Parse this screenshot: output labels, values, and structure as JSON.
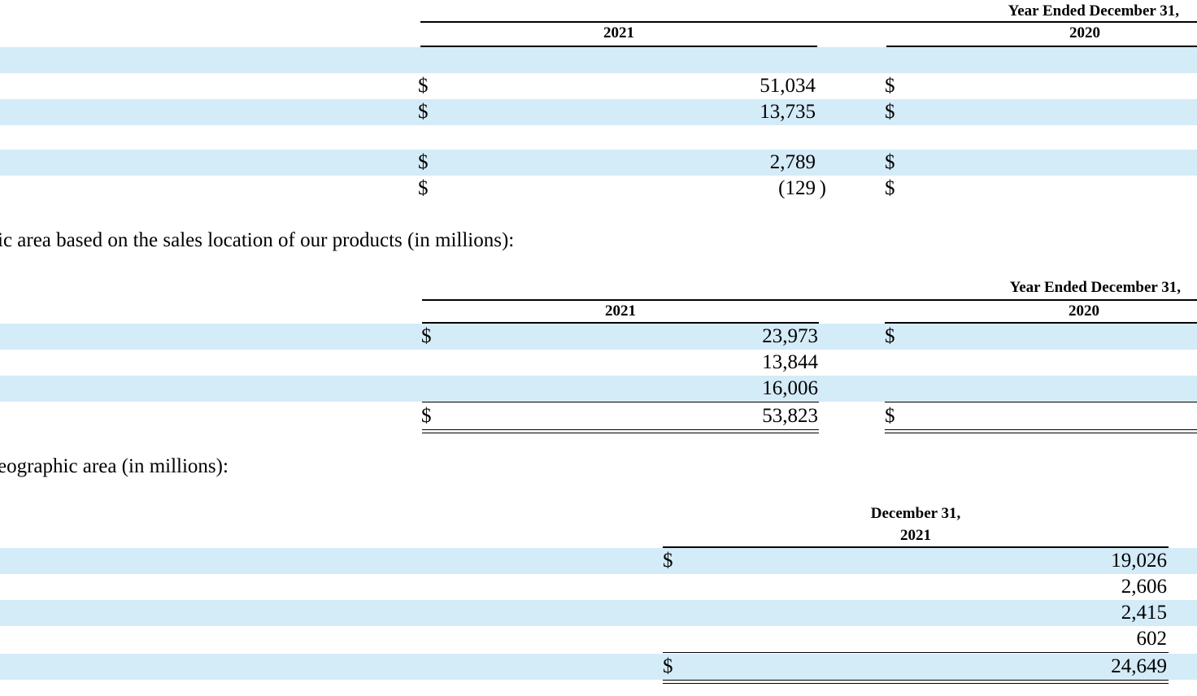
{
  "section1": {
    "header_group": "Year Ended December 31,",
    "col_2021": "2021",
    "col_2020": "2020",
    "rows": [
      {
        "c1_dollar": "",
        "c1_value": "",
        "c2_dollar": ""
      },
      {
        "c1_dollar": "$",
        "c1_value": "51,034",
        "c2_dollar": "$"
      },
      {
        "c1_dollar": "$",
        "c1_value": "13,735",
        "c2_dollar": "$"
      },
      {
        "c1_dollar": "",
        "c1_value": "",
        "c2_dollar": ""
      },
      {
        "c1_dollar": "$",
        "c1_value": "2,789",
        "c2_dollar": "$"
      },
      {
        "c1_dollar": "$",
        "c1_value": "(129",
        "c1_paren": ")",
        "c2_dollar": "$"
      }
    ]
  },
  "intro2": "ic area based on the sales location of our products (in millions):",
  "section2": {
    "header_group": "Year Ended December 31,",
    "col_2021": "2021",
    "col_2020": "2020",
    "rows": [
      {
        "c1_dollar": "$",
        "c1_value": "23,973",
        "c2_dollar": "$"
      },
      {
        "c1_dollar": "",
        "c1_value": "13,844",
        "c2_dollar": ""
      },
      {
        "c1_dollar": "",
        "c1_value": "16,006",
        "c2_dollar": ""
      },
      {
        "c1_dollar": "$",
        "c1_value": "53,823",
        "c2_dollar": "$"
      }
    ]
  },
  "intro3": "eographic area (in millions):",
  "section3": {
    "header_line1": "December 31,",
    "header_line2": "2021",
    "rows": [
      {
        "dollar": "$",
        "value": "19,026"
      },
      {
        "dollar": "",
        "value": "2,606"
      },
      {
        "dollar": "",
        "value": "2,415"
      },
      {
        "dollar": "",
        "value": "602"
      },
      {
        "dollar": "$",
        "value": "24,649"
      }
    ]
  }
}
